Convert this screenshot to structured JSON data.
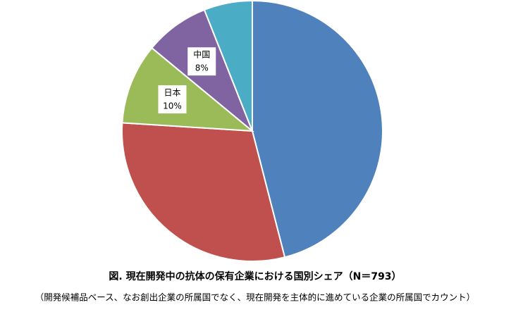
{
  "chart_data": {
    "type": "pie",
    "title": "図. 現在開発中の抗体の保有企業における国別シェア（N＝793）",
    "subtitle": "（開発候補品ベース、なお創出企業の所属国でなく、現在開発を主体的に進めている企業の所属国でカウント）",
    "categories": [
      null,
      null,
      "日本",
      "中国",
      null
    ],
    "values": [
      46,
      30,
      10,
      8,
      6
    ],
    "value_labels": [
      null,
      null,
      "10%",
      "8%",
      null
    ],
    "colors": [
      "#4f81bd",
      "#c0504d",
      "#9bbb59",
      "#8064a2",
      "#4bacc6"
    ]
  }
}
